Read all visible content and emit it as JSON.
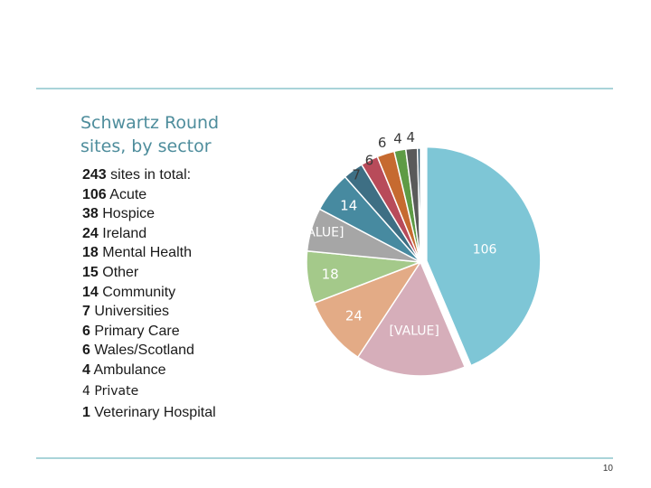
{
  "title": {
    "line1": "Schwartz Round",
    "line2": "sites, by sector"
  },
  "summary": [
    {
      "num": "243",
      "text": " sites in total:"
    },
    {
      "num": "106",
      "text": " Acute"
    },
    {
      "num": "38",
      "text": " Hospice"
    },
    {
      "num": "24",
      "text": " Ireland"
    },
    {
      "num": "18",
      "text": " Mental Health"
    },
    {
      "num": "15",
      "text": " Other"
    },
    {
      "num": "14",
      "text": " Community"
    },
    {
      "num": "7",
      "text": " Universities"
    },
    {
      "num": "6",
      "text": " Primary Care"
    },
    {
      "num": "6",
      "text": " Wales/Scotland"
    },
    {
      "num": "4",
      "text": " Ambulance"
    },
    {
      "num": "4",
      "text": " Private"
    },
    {
      "num": "1",
      "text": " Veterinary Hospital"
    }
  ],
  "page_number": "10",
  "chart_data": {
    "type": "pie",
    "title": "Schwartz Round sites, by sector",
    "slices": [
      {
        "name": "Acute",
        "value": 106,
        "label": "106",
        "color": "#7ec6d6",
        "label_color": "#ffffff"
      },
      {
        "name": "Hospice",
        "value": 38,
        "label": "[VALUE]",
        "color": "#d6aeba",
        "label_color": "#ffffff"
      },
      {
        "name": "Ireland",
        "value": 24,
        "label": "24",
        "color": "#e3ab86",
        "label_color": "#ffffff"
      },
      {
        "name": "Mental Health",
        "value": 18,
        "label": "18",
        "color": "#a4c98a",
        "label_color": "#ffffff"
      },
      {
        "name": "Other",
        "value": 15,
        "label": "[VALUE]",
        "color": "#a6a6a6",
        "label_color": "#ffffff"
      },
      {
        "name": "Community",
        "value": 14,
        "label": "14",
        "color": "#478aa0",
        "label_color": "#ffffff"
      },
      {
        "name": "Universities",
        "value": 7,
        "label": "7",
        "color": "#3e6f84",
        "label_color": "#3a3a3a"
      },
      {
        "name": "Primary Care",
        "value": 6,
        "label": "6",
        "color": "#b84b5a",
        "label_color": "#3a3a3a"
      },
      {
        "name": "Wales/Scotland",
        "value": 6,
        "label": "6",
        "color": "#c66a30",
        "label_color": "#3a3a3a"
      },
      {
        "name": "Ambulance",
        "value": 4,
        "label": "4",
        "color": "#5e9b45",
        "label_color": "#3a3a3a"
      },
      {
        "name": "Private",
        "value": 4,
        "label": "4",
        "color": "#5a5a5a",
        "label_color": "#3a3a3a"
      },
      {
        "name": "Veterinary Hospital",
        "value": 1,
        "label": "",
        "color": "#2b4f62",
        "label_color": "#3a3a3a"
      }
    ],
    "exploded": [
      "Acute"
    ],
    "start": "top, clockwise"
  }
}
